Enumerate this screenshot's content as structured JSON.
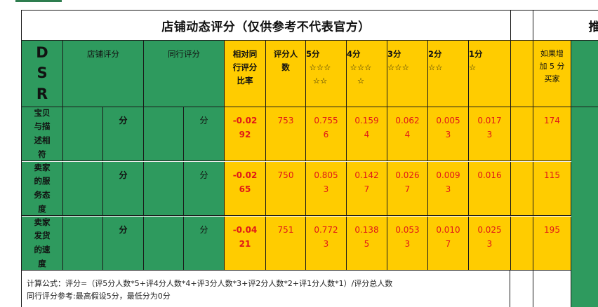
{
  "title": "店铺动态评分（仅供参考不代表官方）",
  "title_right_fragment": "推",
  "headers": {
    "dsr": "DSR",
    "shop_score": "店铺评分",
    "peer_score": "同行评分",
    "relative": "相对同行评分比率",
    "raters": "评分人数",
    "s5": "5分",
    "s5_stars": "☆☆☆☆☆",
    "s4": "4分",
    "s4_stars": "☆☆☆☆",
    "s3": "3分",
    "s3_stars": "☆☆☆",
    "s2": "2分",
    "s2_stars": "☆☆",
    "s1": "1分",
    "s1_stars": "☆",
    "buyers": "如果增加 5 分买家"
  },
  "rows": [
    {
      "label": "宝贝与描述相符",
      "shop_unit": "分",
      "peer_unit": "分",
      "relative": "-0.0292",
      "raters": "753",
      "s5": "0.7556",
      "s4": "0.1594",
      "s3": "0.0624",
      "s2": "0.0053",
      "s1": "0.0173",
      "buyers": "174"
    },
    {
      "label": "卖家的服务态度",
      "shop_unit": "分",
      "peer_unit": "分",
      "relative": "-0.0265",
      "raters": "750",
      "s5": "0.8053",
      "s4": "0.1427",
      "s3": "0.0267",
      "s2": "0.0093",
      "s1": "0.016",
      "buyers": "115"
    },
    {
      "label": "卖家发货的速度",
      "shop_unit": "分",
      "peer_unit": "分",
      "relative": "-0.0421",
      "raters": "751",
      "s5": "0.7723",
      "s4": "0.1385",
      "s3": "0.0533",
      "s2": "0.0107",
      "s1": "0.0253",
      "buyers": "195"
    }
  ],
  "notes": {
    "formula": "计算公式：评分=（评5分人数*5+评4分人数*4+评3分人数*3+评2分人数*2+评1分人数*1）/评分总人数",
    "peer_ref": "同行评分参考:最高假设5分，最低分为0分"
  },
  "colors": {
    "green": "#2e9a5e",
    "yellow": "#ffcc00",
    "red_text": "#e01818"
  }
}
